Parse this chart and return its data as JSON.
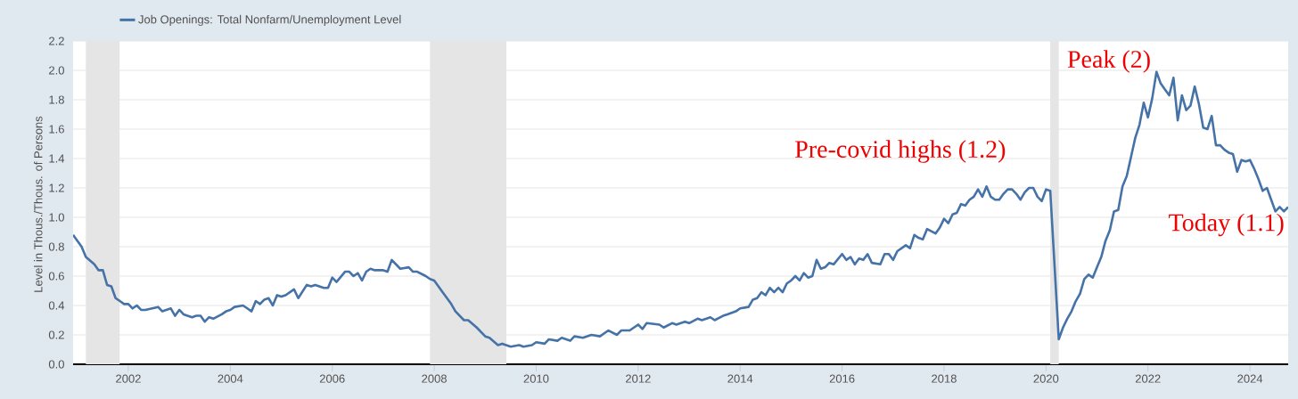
{
  "chart_data": {
    "type": "line",
    "ylabel": "Level in Thous./Thous. of Persons",
    "xlim": [
      "2000-12",
      "2024-10"
    ],
    "ylim": [
      0,
      2.2
    ],
    "xticks": [
      "2002",
      "2004",
      "2006",
      "2008",
      "2010",
      "2012",
      "2014",
      "2016",
      "2018",
      "2020",
      "2022",
      "2024"
    ],
    "yticks": [
      {
        "value": 0,
        "label": "0.0"
      },
      {
        "value": 0.2,
        "label": "0.2"
      },
      {
        "value": 0.4,
        "label": "0.4"
      },
      {
        "value": 0.6,
        "label": "0.6"
      },
      {
        "value": 0.8,
        "label": "0.8"
      },
      {
        "value": 1.0,
        "label": "1.0"
      },
      {
        "value": 1.2,
        "label": "1.2"
      },
      {
        "value": 1.4,
        "label": "1.4"
      },
      {
        "value": 1.6,
        "label": "1.6"
      },
      {
        "value": 1.8,
        "label": "1.8"
      },
      {
        "value": 2.0,
        "label": "2.0"
      },
      {
        "value": 2.2,
        "label": "2.2"
      }
    ],
    "grid": "y",
    "legend": "top left",
    "bands": [
      {
        "axis": "x",
        "from": "2001-03",
        "to": "2001-11",
        "color": "#e5e5e5"
      },
      {
        "axis": "x",
        "from": "2007-12",
        "to": "2009-06",
        "color": "#e5e5e5"
      },
      {
        "axis": "x",
        "from": "2020-02",
        "to": "2020-04",
        "color": "#e5e5e5"
      }
    ],
    "annotations": [
      {
        "text": "Pre-covid highs (1.2)",
        "x": "2018-11",
        "y": 1.2
      },
      {
        "text": "Peak (2)",
        "x": "2022-03",
        "y": 2.0
      },
      {
        "text": "Today (1.1)",
        "x": "2024-10",
        "y": 1.1
      }
    ],
    "series": [
      {
        "name": "Job Openings: Total Nonfarm/Unemployment Level",
        "color": "#4572a7",
        "x": [
          "2000-12",
          "2001-02",
          "2001-03",
          "2001-05",
          "2001-06",
          "2001-07",
          "2001-08",
          "2001-09",
          "2001-10",
          "2001-11",
          "2001-12",
          "2002-01",
          "2002-02",
          "2002-03",
          "2002-04",
          "2002-05",
          "2002-08",
          "2002-09",
          "2002-11",
          "2002-12",
          "2003-01",
          "2003-02",
          "2003-04",
          "2003-05",
          "2003-06",
          "2003-07",
          "2003-08",
          "2003-09",
          "2003-11",
          "2003-12",
          "2004-01",
          "2004-02",
          "2004-04",
          "2004-05",
          "2004-06",
          "2004-07",
          "2004-08",
          "2004-09",
          "2004-10",
          "2004-11",
          "2004-12",
          "2005-01",
          "2005-02",
          "2005-04",
          "2005-05",
          "2005-07",
          "2005-08",
          "2005-09",
          "2005-11",
          "2005-12",
          "2006-01",
          "2006-02",
          "2006-04",
          "2006-05",
          "2006-06",
          "2006-07",
          "2006-08",
          "2006-09",
          "2006-10",
          "2006-11",
          "2007-01",
          "2007-02",
          "2007-03",
          "2007-05",
          "2007-07",
          "2007-08",
          "2007-09",
          "2007-11",
          "2007-12",
          "2008-01",
          "2008-03",
          "2008-05",
          "2008-06",
          "2008-08",
          "2008-09",
          "2008-11",
          "2009-01",
          "2009-02",
          "2009-04",
          "2009-05",
          "2009-07",
          "2009-09",
          "2009-10",
          "2009-12",
          "2010-01",
          "2010-03",
          "2010-04",
          "2010-06",
          "2010-07",
          "2010-09",
          "2010-10",
          "2010-12",
          "2011-02",
          "2011-04",
          "2011-06",
          "2011-08",
          "2011-09",
          "2011-11",
          "2012-01",
          "2012-02",
          "2012-03",
          "2012-06",
          "2012-07",
          "2012-09",
          "2012-10",
          "2012-12",
          "2013-01",
          "2013-03",
          "2013-04",
          "2013-06",
          "2013-07",
          "2013-09",
          "2013-10",
          "2013-12",
          "2014-01",
          "2014-03",
          "2014-04",
          "2014-05",
          "2014-06",
          "2014-07",
          "2014-08",
          "2014-09",
          "2014-10",
          "2014-11",
          "2014-12",
          "2015-01",
          "2015-02",
          "2015-03",
          "2015-04",
          "2015-05",
          "2015-06",
          "2015-07",
          "2015-08",
          "2015-09",
          "2015-10",
          "2015-11",
          "2016-01",
          "2016-02",
          "2016-03",
          "2016-04",
          "2016-05",
          "2016-06",
          "2016-07",
          "2016-08",
          "2016-10",
          "2016-11",
          "2016-12",
          "2017-01",
          "2017-02",
          "2017-04",
          "2017-05",
          "2017-06",
          "2017-07",
          "2017-08",
          "2017-09",
          "2017-11",
          "2017-12",
          "2018-01",
          "2018-02",
          "2018-03",
          "2018-04",
          "2018-05",
          "2018-06",
          "2018-07",
          "2018-08",
          "2018-09",
          "2018-10",
          "2018-11",
          "2018-12",
          "2019-01",
          "2019-02",
          "2019-03",
          "2019-04",
          "2019-05",
          "2019-06",
          "2019-07",
          "2019-08",
          "2019-09",
          "2019-10",
          "2019-11",
          "2019-12",
          "2020-01",
          "2020-02",
          "2020-04",
          "2020-05",
          "2020-06",
          "2020-07",
          "2020-08",
          "2020-09",
          "2020-10",
          "2020-11",
          "2020-12",
          "2021-01",
          "2021-02",
          "2021-03",
          "2021-04",
          "2021-05",
          "2021-06",
          "2021-07",
          "2021-08",
          "2021-09",
          "2021-10",
          "2021-11",
          "2021-12",
          "2022-01",
          "2022-02",
          "2022-03",
          "2022-04",
          "2022-05",
          "2022-06",
          "2022-07",
          "2022-08",
          "2022-09",
          "2022-10",
          "2022-11",
          "2022-12",
          "2023-01",
          "2023-02",
          "2023-03",
          "2023-04",
          "2023-05",
          "2023-06",
          "2023-07",
          "2023-08",
          "2023-09",
          "2023-10",
          "2023-11",
          "2023-12",
          "2024-01",
          "2024-02",
          "2024-03",
          "2024-04",
          "2024-05",
          "2024-06",
          "2024-07",
          "2024-08",
          "2024-09",
          "2024-10"
        ],
        "values": [
          0.88,
          0.8,
          0.73,
          0.68,
          0.64,
          0.64,
          0.54,
          0.53,
          0.45,
          0.43,
          0.41,
          0.41,
          0.38,
          0.4,
          0.37,
          0.37,
          0.39,
          0.36,
          0.38,
          0.33,
          0.37,
          0.34,
          0.32,
          0.33,
          0.33,
          0.29,
          0.32,
          0.31,
          0.34,
          0.36,
          0.37,
          0.39,
          0.4,
          0.38,
          0.36,
          0.43,
          0.41,
          0.44,
          0.45,
          0.4,
          0.47,
          0.46,
          0.47,
          0.51,
          0.45,
          0.54,
          0.53,
          0.54,
          0.52,
          0.52,
          0.59,
          0.56,
          0.63,
          0.63,
          0.6,
          0.62,
          0.57,
          0.63,
          0.65,
          0.64,
          0.64,
          0.63,
          0.71,
          0.65,
          0.66,
          0.63,
          0.63,
          0.6,
          0.58,
          0.57,
          0.49,
          0.41,
          0.36,
          0.3,
          0.3,
          0.25,
          0.19,
          0.18,
          0.13,
          0.14,
          0.12,
          0.13,
          0.12,
          0.13,
          0.15,
          0.14,
          0.17,
          0.16,
          0.18,
          0.16,
          0.19,
          0.18,
          0.2,
          0.19,
          0.23,
          0.2,
          0.23,
          0.23,
          0.27,
          0.24,
          0.28,
          0.27,
          0.25,
          0.28,
          0.27,
          0.29,
          0.28,
          0.31,
          0.3,
          0.32,
          0.3,
          0.33,
          0.34,
          0.36,
          0.38,
          0.39,
          0.44,
          0.45,
          0.49,
          0.47,
          0.52,
          0.49,
          0.52,
          0.49,
          0.55,
          0.57,
          0.6,
          0.57,
          0.62,
          0.59,
          0.6,
          0.71,
          0.65,
          0.66,
          0.69,
          0.68,
          0.75,
          0.71,
          0.73,
          0.68,
          0.72,
          0.71,
          0.75,
          0.69,
          0.68,
          0.75,
          0.75,
          0.71,
          0.77,
          0.81,
          0.79,
          0.88,
          0.86,
          0.85,
          0.92,
          0.89,
          0.93,
          0.99,
          0.96,
          1.02,
          1.03,
          1.09,
          1.08,
          1.12,
          1.14,
          1.19,
          1.14,
          1.21,
          1.14,
          1.12,
          1.12,
          1.16,
          1.19,
          1.19,
          1.16,
          1.12,
          1.17,
          1.2,
          1.2,
          1.14,
          1.11,
          1.19,
          1.18,
          0.17,
          0.25,
          0.31,
          0.36,
          0.43,
          0.48,
          0.58,
          0.61,
          0.59,
          0.66,
          0.73,
          0.84,
          0.91,
          1.04,
          1.05,
          1.21,
          1.28,
          1.41,
          1.54,
          1.63,
          1.78,
          1.68,
          1.81,
          1.99,
          1.91,
          1.87,
          1.83,
          1.95,
          1.66,
          1.83,
          1.73,
          1.76,
          1.89,
          1.77,
          1.61,
          1.6,
          1.69,
          1.49,
          1.49,
          1.46,
          1.44,
          1.43,
          1.31,
          1.39,
          1.38,
          1.39,
          1.33,
          1.26,
          1.18,
          1.2,
          1.12,
          1.04,
          1.07,
          1.04,
          1.07
        ]
      }
    ]
  }
}
